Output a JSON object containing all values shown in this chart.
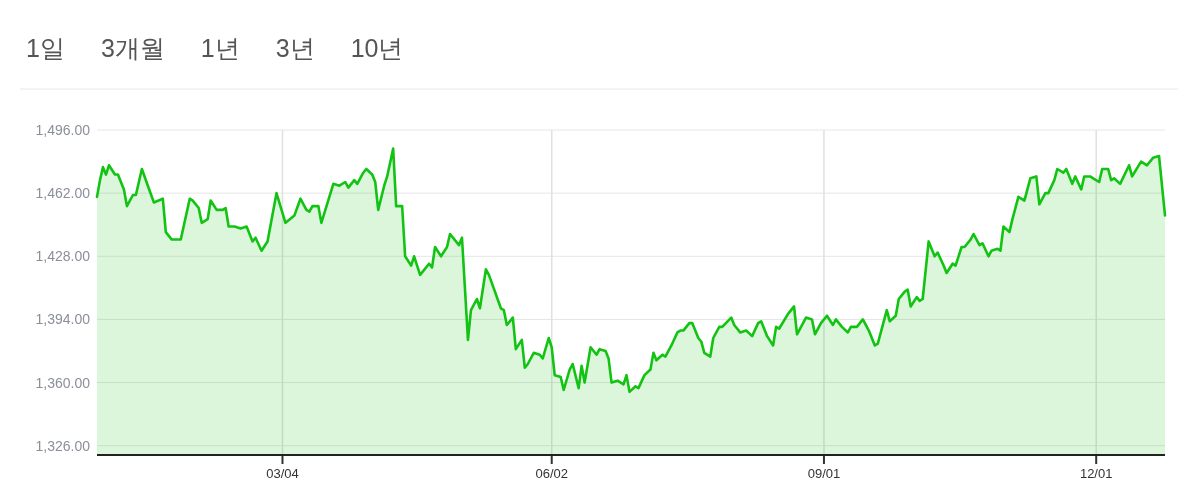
{
  "chart_data": {
    "type": "area",
    "annotations": [
      "1일",
      "3개월",
      "1년",
      "3년",
      "10년"
    ],
    "x": [
      "--01-01",
      "--01-02",
      "--01-03",
      "--01-04",
      "--01-05",
      "--01-07",
      "--01-08",
      "--01-10",
      "--01-11",
      "--01-13",
      "--01-14",
      "--01-16",
      "--01-18",
      "--01-20",
      "--01-23",
      "--01-24",
      "--01-26",
      "--01-29",
      "--02-01",
      "--02-02",
      "--02-04",
      "--02-05",
      "--02-07",
      "--02-08",
      "--02-10",
      "--02-12",
      "--02-13",
      "--02-14",
      "--02-16",
      "--02-18",
      "--02-20",
      "--02-22",
      "--02-23",
      "--02-25",
      "--02-27",
      "--03-02",
      "--03-05",
      "--03-08",
      "--03-10",
      "--03-12",
      "--03-13",
      "--03-14",
      "--03-16",
      "--03-17",
      "--03-21",
      "--03-23",
      "--03-25",
      "--03-26",
      "--03-28",
      "--03-29",
      "--03-31",
      "--04-01",
      "--04-03",
      "--04-04",
      "--04-05",
      "--04-07",
      "--04-08",
      "--04-10",
      "--04-11",
      "--04-13",
      "--04-14",
      "--04-16",
      "--04-17",
      "--04-19",
      "--04-22",
      "--04-23",
      "--04-24",
      "--04-26",
      "--04-28",
      "--04-29",
      "--05-02",
      "--05-03",
      "--05-05",
      "--05-06",
      "--05-08",
      "--05-09",
      "--05-11",
      "--05-12",
      "--05-16",
      "--05-17",
      "--05-18",
      "--05-20",
      "--05-21",
      "--05-23",
      "--05-24",
      "--05-25",
      "--05-27",
      "--05-29",
      "--05-30",
      "--06-01",
      "--06-02",
      "--06-03",
      "--06-05",
      "--06-06",
      "--06-08",
      "--06-09",
      "--06-11",
      "--06-12",
      "--06-13",
      "--06-15",
      "--06-17",
      "--06-18",
      "--06-20",
      "--06-21",
      "--06-22",
      "--06-24",
      "--06-26",
      "--06-27",
      "--06-28",
      "--06-30",
      "--07-01",
      "--07-03",
      "--07-05",
      "--07-06",
      "--07-07",
      "--07-09",
      "--07-10",
      "--07-12",
      "--07-14",
      "--07-15",
      "--07-16",
      "--07-18",
      "--07-19",
      "--07-21",
      "--07-22",
      "--07-23",
      "--07-25",
      "--07-26",
      "--07-28",
      "--07-29",
      "--08-01",
      "--08-02",
      "--08-04",
      "--08-06",
      "--08-08",
      "--08-10",
      "--08-11",
      "--08-13",
      "--08-15",
      "--08-16",
      "--08-17",
      "--08-20",
      "--08-22",
      "--08-23",
      "--08-26",
      "--08-28",
      "--08-29",
      "--08-31",
      "--09-02",
      "--09-04",
      "--09-05",
      "--09-07",
      "--09-09",
      "--09-10",
      "--09-12",
      "--09-14",
      "--09-16",
      "--09-18",
      "--09-19",
      "--09-22",
      "--09-23",
      "--09-25",
      "--09-26",
      "--09-28",
      "--09-29",
      "--09-30",
      "--10-02",
      "--10-03",
      "--10-04",
      "--10-06",
      "--10-08",
      "--10-09",
      "--10-11",
      "--10-12",
      "--10-14",
      "--10-15",
      "--10-17",
      "--10-18",
      "--10-20",
      "--10-21",
      "--10-23",
      "--10-24",
      "--10-26",
      "--10-27",
      "--10-29",
      "--10-30",
      "--10-31",
      "--11-02",
      "--11-03",
      "--11-05",
      "--11-07",
      "--11-08",
      "--11-09",
      "--11-11",
      "--11-12",
      "--11-14",
      "--11-15",
      "--11-17",
      "--11-18",
      "--11-20",
      "--11-21",
      "--11-23",
      "--11-24",
      "--11-26",
      "--11-27",
      "--11-29",
      "--11-30",
      "--12-02",
      "--12-03",
      "--12-05",
      "--12-06",
      "--12-07",
      "--12-09",
      "--12-12",
      "--12-13",
      "--12-16",
      "--12-18",
      "--12-20",
      "--12-22",
      "--12-24"
    ],
    "series": [
      {
        "color": "#13c313",
        "values": [
          1460,
          1469,
          1476,
          1472,
          1477,
          1472,
          1472,
          1464,
          1455,
          1461,
          1461,
          1475,
          1466,
          1457,
          1459,
          1441,
          1437,
          1437,
          1459,
          1458,
          1454,
          1446,
          1448,
          1458,
          1453,
          1453,
          1454,
          1444,
          1444,
          1443,
          1444,
          1436,
          1438,
          1431,
          1436,
          1462,
          1446,
          1450,
          1459,
          1453,
          1452,
          1455,
          1455,
          1446,
          1467,
          1466,
          1468,
          1465,
          1469,
          1467,
          1473,
          1475,
          1472,
          1468,
          1453,
          1466,
          1471,
          1486,
          1455,
          1455,
          1428,
          1423,
          1428,
          1418,
          1424,
          1422,
          1433,
          1428,
          1433,
          1440,
          1434,
          1438,
          1383,
          1399,
          1405,
          1400,
          1421,
          1418,
          1400,
          1399,
          1391,
          1395,
          1378,
          1383,
          1368,
          1370,
          1376,
          1375,
          1373,
          1384,
          1379,
          1364,
          1363,
          1356,
          1367,
          1370,
          1357,
          1369,
          1360,
          1379,
          1375,
          1378,
          1377,
          1373,
          1360,
          1361,
          1359,
          1364,
          1355,
          1358,
          1357,
          1364,
          1367,
          1376,
          1372,
          1375,
          1374,
          1380,
          1387,
          1388,
          1388,
          1392,
          1392,
          1384,
          1382,
          1376,
          1374,
          1384,
          1390,
          1390,
          1395,
          1391,
          1387,
          1388,
          1385,
          1392,
          1393,
          1385,
          1380,
          1390,
          1389,
          1397,
          1401,
          1386,
          1395,
          1394,
          1386,
          1392,
          1396,
          1391,
          1394,
          1390,
          1387,
          1390,
          1390,
          1394,
          1388,
          1380,
          1381,
          1399,
          1393,
          1396,
          1405,
          1409,
          1410,
          1401,
          1406,
          1404,
          1405,
          1436,
          1428,
          1430,
          1423,
          1419,
          1424,
          1423,
          1433,
          1433,
          1437,
          1440,
          1434,
          1435,
          1428,
          1431,
          1432,
          1431,
          1444,
          1441,
          1448,
          1460,
          1458,
          1464,
          1470,
          1471,
          1456,
          1462,
          1462,
          1469,
          1475,
          1473,
          1475,
          1467,
          1471,
          1464,
          1471,
          1471,
          1470,
          1468,
          1475,
          1475,
          1469,
          1470,
          1467,
          1477,
          1471,
          1479,
          1477,
          1481,
          1482,
          1450
        ]
      }
    ],
    "xlim": [
      "--01-01",
      "--12-24"
    ],
    "xticks": [
      {
        "value": "--03-04",
        "label": "03/04"
      },
      {
        "value": "--06-02",
        "label": "06/02"
      },
      {
        "value": "--09-01",
        "label": "09/01"
      },
      {
        "value": "--12-01",
        "label": "12/01"
      }
    ],
    "ylim": [
      1321,
      1496
    ],
    "yticks": [
      {
        "value": 1326,
        "label": "1,326.00"
      },
      {
        "value": 1360,
        "label": "1,360.00"
      },
      {
        "value": 1394,
        "label": "1,394.00"
      },
      {
        "value": 1428,
        "label": "1,428.00"
      },
      {
        "value": 1462,
        "label": "1,462.00"
      },
      {
        "value": 1496,
        "label": "1,496.00"
      }
    ],
    "grid": true,
    "marker": "none",
    "line_style": "solid"
  }
}
